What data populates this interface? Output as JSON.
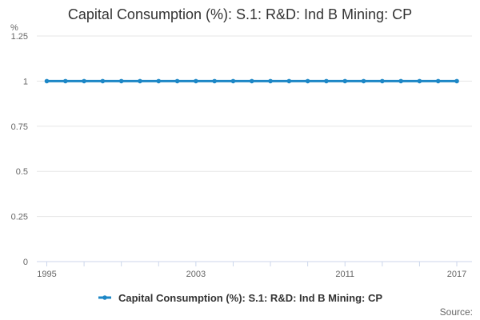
{
  "chart": {
    "title": "Capital Consumption (%): S.1: R&D: Ind B Mining: CP",
    "y_axis_unit": "%"
  },
  "legend": {
    "label": "Capital Consumption (%): S.1: R&D: Ind B Mining: CP"
  },
  "footer": {
    "source_label": "Source:"
  },
  "colors": {
    "line": "#1d87c6",
    "marker": "#1d87c6",
    "grid": "#e6e6e6",
    "axis": "#ccd6eb",
    "tick_text": "#666666",
    "title_text": "#333333",
    "legend_text": "#333333",
    "source_text": "#666666"
  },
  "chart_data": {
    "type": "line",
    "title": "Capital Consumption (%): S.1: R&D: Ind B Mining: CP",
    "xlabel": "",
    "ylabel": "%",
    "x": [
      1995,
      1996,
      1997,
      1998,
      1999,
      2000,
      2001,
      2002,
      2003,
      2004,
      2005,
      2006,
      2007,
      2008,
      2009,
      2010,
      2011,
      2012,
      2013,
      2014,
      2015,
      2016,
      2017
    ],
    "series": [
      {
        "name": "Capital Consumption (%): S.1: R&D: Ind B Mining: CP",
        "values": [
          1,
          1,
          1,
          1,
          1,
          1,
          1,
          1,
          1,
          1,
          1,
          1,
          1,
          1,
          1,
          1,
          1,
          1,
          1,
          1,
          1,
          1,
          1
        ]
      }
    ],
    "ylim": [
      0,
      1.25
    ],
    "y_ticks": [
      0,
      0.25,
      0.5,
      0.75,
      1,
      1.25
    ],
    "x_tick_step": 2,
    "x_ticks_labeled": [
      1995,
      2003,
      2011,
      2017
    ],
    "grid": true,
    "legend_position": "bottom"
  }
}
